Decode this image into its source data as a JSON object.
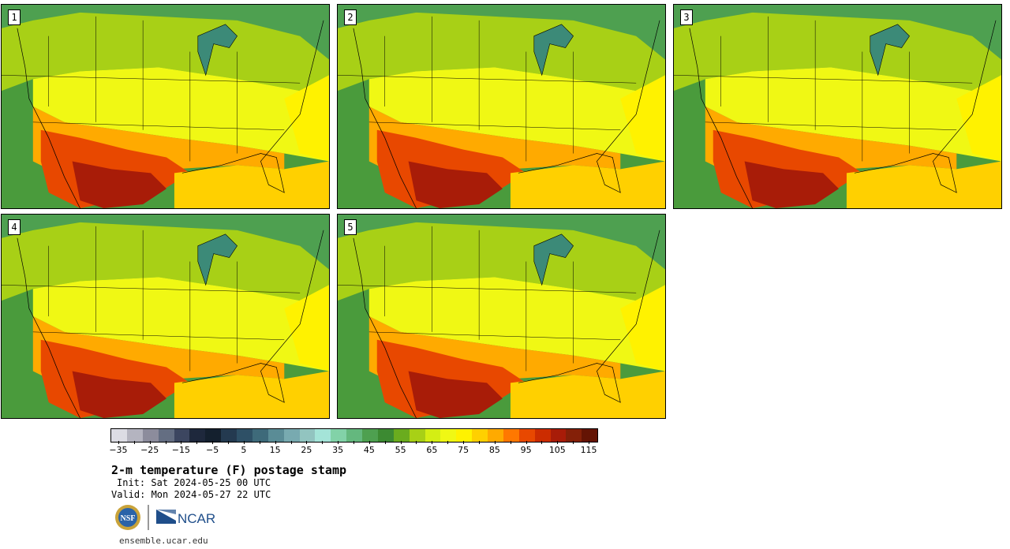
{
  "panels": [
    {
      "label": "1"
    },
    {
      "label": "2"
    },
    {
      "label": "3"
    },
    {
      "label": "4"
    },
    {
      "label": "5"
    }
  ],
  "colorbar": {
    "colors": [
      "#dcdce4",
      "#b4b4c0",
      "#8c8c9c",
      "#646e82",
      "#3c4660",
      "#1e283c",
      "#14202e",
      "#243a50",
      "#2e5066",
      "#3e6a7a",
      "#5a8c96",
      "#78aab0",
      "#92c4c0",
      "#a4e4d8",
      "#82d2a8",
      "#64b87e",
      "#4ea050",
      "#3c8a32",
      "#6aac1e",
      "#a8d016",
      "#d4ee14",
      "#f0f814",
      "#fff200",
      "#ffd000",
      "#ffaa00",
      "#ff7800",
      "#e84800",
      "#cc2c00",
      "#a81c08",
      "#842008",
      "#641404"
    ],
    "tick_values": [
      -35,
      -30,
      -25,
      -20,
      -15,
      -10,
      -5,
      0,
      5,
      10,
      15,
      20,
      25,
      30,
      35,
      40,
      45,
      50,
      55,
      60,
      65,
      70,
      75,
      80,
      85,
      90,
      95,
      100,
      105,
      110,
      115
    ],
    "labels": [
      "−35",
      "−25",
      "−15",
      "−5",
      "5",
      "15",
      "25",
      "35",
      "45",
      "55",
      "65",
      "75",
      "85",
      "95",
      "105",
      "115"
    ]
  },
  "title": "2-m temperature (F) postage stamp",
  "init": "Init: Sat 2024-05-25 00 UTC",
  "valid": "Valid: Mon 2024-05-27 22 UTC",
  "logos": {
    "nsf": "NSF",
    "ncar": "NCAR"
  },
  "website": "ensemble.ucar.edu"
}
